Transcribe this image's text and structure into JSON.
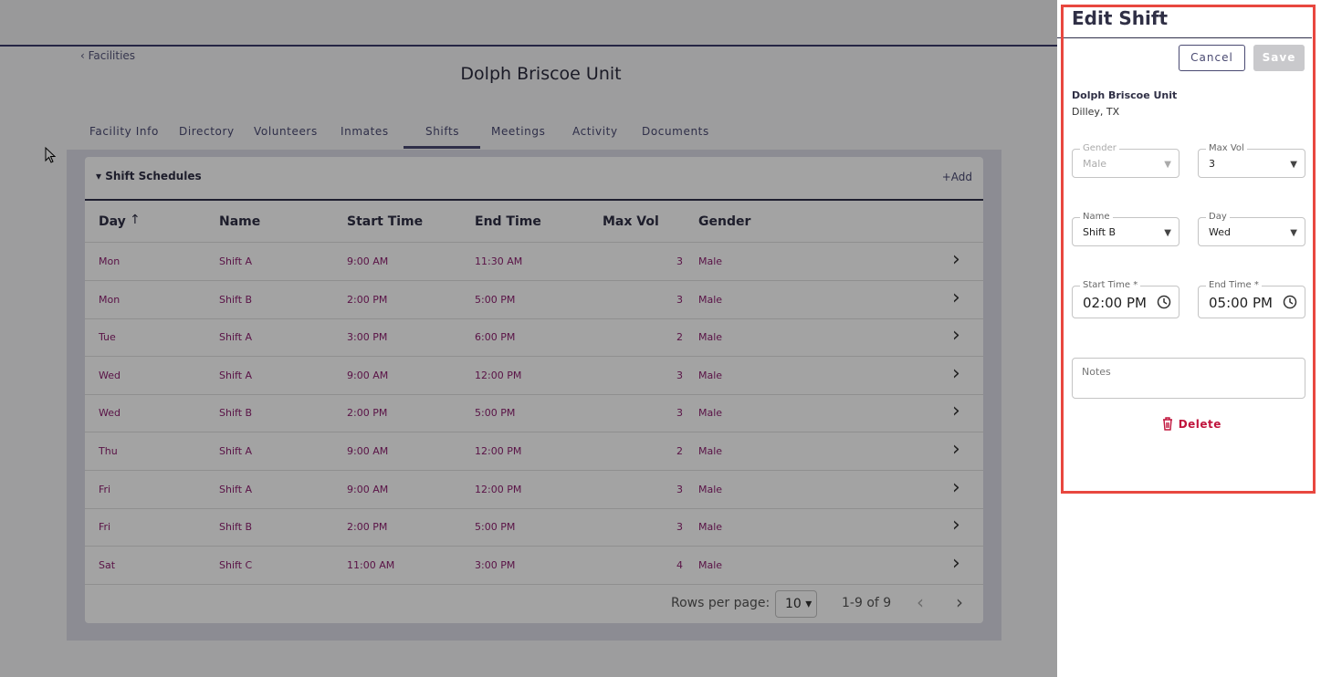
{
  "breadcrumb": "Facilities",
  "facility_title": "Dolph Briscoe Unit",
  "tabs": [
    "Facility Info",
    "Directory",
    "Volunteers",
    "Inmates",
    "Shifts",
    "Meetings",
    "Activity",
    "Documents"
  ],
  "active_tab": 4,
  "panel": {
    "title": "Shift Schedules",
    "add": "Add"
  },
  "table": {
    "columns": [
      "Day",
      "Name",
      "Start Time",
      "End Time",
      "Max Vol",
      "Gender"
    ],
    "rows": [
      [
        "Mon",
        "Shift A",
        "9:00 AM",
        "11:30 AM",
        3,
        "Male"
      ],
      [
        "Mon",
        "Shift B",
        "2:00 PM",
        "5:00 PM",
        3,
        "Male"
      ],
      [
        "Tue",
        "Shift A",
        "3:00 PM",
        "6:00 PM",
        2,
        "Male"
      ],
      [
        "Wed",
        "Shift A",
        "9:00 AM",
        "12:00 PM",
        3,
        "Male"
      ],
      [
        "Wed",
        "Shift B",
        "2:00 PM",
        "5:00 PM",
        3,
        "Male"
      ],
      [
        "Thu",
        "Shift A",
        "9:00 AM",
        "12:00 PM",
        2,
        "Male"
      ],
      [
        "Fri",
        "Shift A",
        "9:00 AM",
        "12:00 PM",
        3,
        "Male"
      ],
      [
        "Fri",
        "Shift B",
        "2:00 PM",
        "5:00 PM",
        3,
        "Male"
      ],
      [
        "Sat",
        "Shift C",
        "11:00 AM",
        "3:00 PM",
        4,
        "Male"
      ]
    ]
  },
  "pagination": {
    "rows_per_page_label": "Rows per page:",
    "rows_per_page": 10,
    "range": "1-9 of 9"
  },
  "drawer": {
    "title": "Edit Shift",
    "cancel": "Cancel",
    "save": "Save",
    "facility": "Dolph Briscoe Unit",
    "location": "Dilley, TX",
    "fields": [
      {
        "label": "Gender",
        "value": "Male"
      },
      {
        "label": "Max Vol",
        "value": 3
      },
      {
        "label": "Name",
        "value": "Shift B"
      },
      {
        "label": "Day",
        "value": "Wed"
      },
      {
        "label": "Start Time *",
        "value": "02:00 PM"
      },
      {
        "label": "End Time *",
        "value": "05:00 PM"
      }
    ],
    "notes_placeholder": "Notes",
    "delete": "Delete"
  }
}
